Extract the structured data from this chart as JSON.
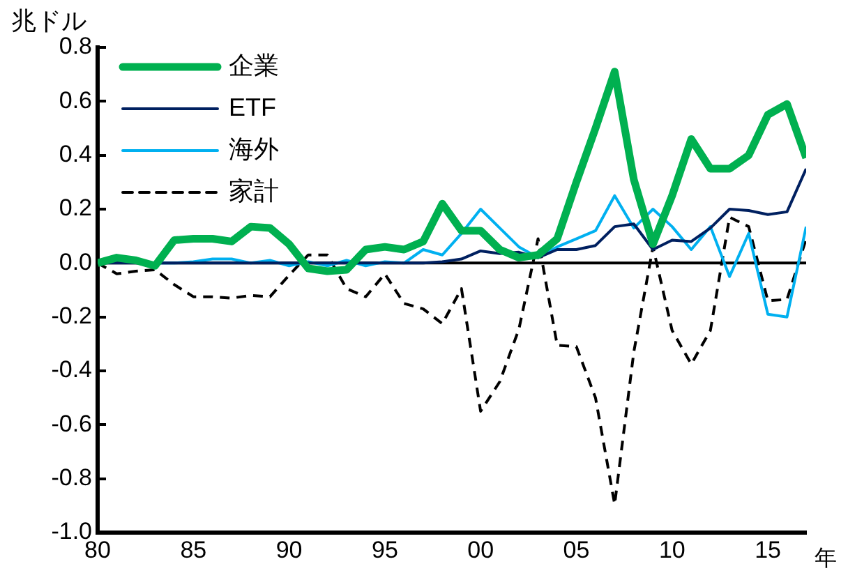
{
  "chart_data": {
    "type": "line",
    "xlabel": "年",
    "ylabel": "兆ドル",
    "x": [
      1980,
      1981,
      1982,
      1983,
      1984,
      1985,
      1986,
      1987,
      1988,
      1989,
      1990,
      1991,
      1992,
      1993,
      1994,
      1995,
      1996,
      1997,
      1998,
      1999,
      2000,
      2001,
      2002,
      2003,
      2004,
      2005,
      2006,
      2007,
      2008,
      2009,
      2010,
      2011,
      2012,
      2013,
      2014,
      2015,
      2016,
      2017
    ],
    "series": [
      {
        "name": "企業",
        "color": "#00b050",
        "values": [
          0,
          0.02,
          0.01,
          -0.01,
          0.085,
          0.09,
          0.09,
          0.08,
          0.135,
          0.13,
          0.07,
          -0.02,
          -0.03,
          -0.025,
          0.05,
          0.06,
          0.05,
          0.08,
          0.22,
          0.12,
          0.12,
          0.05,
          0.02,
          0.03,
          0.09,
          0.3,
          0.5,
          0.71,
          0.31,
          0.07,
          0.25,
          0.46,
          0.35,
          0.35,
          0.4,
          0.55,
          0.59,
          0.39
        ]
      },
      {
        "name": "ETF",
        "color": "#002060",
        "values": [
          0,
          0,
          0,
          0,
          0,
          0,
          0,
          0,
          0,
          0,
          0,
          0,
          0,
          0,
          0,
          0,
          0,
          0,
          0.005,
          0.015,
          0.045,
          0.035,
          0.04,
          0.02,
          0.05,
          0.05,
          0.065,
          0.135,
          0.145,
          0.05,
          0.085,
          0.08,
          0.13,
          0.2,
          0.195,
          0.18,
          0.19,
          0.35
        ]
      },
      {
        "name": "海外",
        "color": "#00b0f0",
        "values": [
          null,
          null,
          null,
          0,
          0,
          0.005,
          0.015,
          0.015,
          0,
          0.01,
          -0.01,
          0.005,
          -0.01,
          0.01,
          -0.01,
          0.005,
          0,
          0.05,
          0.03,
          0.11,
          0.2,
          0.13,
          0.06,
          0.02,
          0.06,
          0.09,
          0.12,
          0.25,
          0.13,
          0.2,
          0.135,
          0.05,
          0.135,
          -0.05,
          0.11,
          -0.19,
          -0.2,
          0.135
        ]
      },
      {
        "name": "家計",
        "color": "#000000",
        "line_style": "dashed",
        "values": [
          0,
          -0.04,
          -0.03,
          -0.025,
          -0.08,
          -0.125,
          -0.125,
          -0.13,
          -0.12,
          -0.125,
          -0.045,
          0.03,
          0.03,
          -0.095,
          -0.125,
          -0.04,
          -0.15,
          -0.17,
          -0.225,
          -0.095,
          -0.55,
          -0.44,
          -0.245,
          0.09,
          -0.305,
          -0.31,
          -0.5,
          -0.895,
          -0.33,
          0.06,
          -0.25,
          -0.375,
          -0.25,
          0.17,
          0.135,
          -0.14,
          -0.135,
          0.09
        ]
      }
    ],
    "xlim": [
      1980,
      2017
    ],
    "xticks": [
      {
        "value": 1980,
        "label": "80"
      },
      {
        "value": 1985,
        "label": "85"
      },
      {
        "value": 1990,
        "label": "90"
      },
      {
        "value": 1995,
        "label": "95"
      },
      {
        "value": 2000,
        "label": "00"
      },
      {
        "value": 2005,
        "label": "05"
      },
      {
        "value": 2010,
        "label": "10"
      },
      {
        "value": 2015,
        "label": "15"
      }
    ],
    "ylim": [
      -1,
      0.8
    ],
    "yticks": [
      0.8,
      0.6,
      0.4,
      0.2,
      {
        "value": 0,
        "label": "0.0"
      },
      -0.2,
      -0.4,
      -0.6,
      -0.8,
      {
        "value": -1,
        "label": "-1.0"
      }
    ],
    "ref_lines": [
      {
        "axis": "y",
        "value": 0,
        "color": "#000000"
      }
    ],
    "legend": "top left",
    "grid": false,
    "marker": "none",
    "line_style": "solid"
  }
}
